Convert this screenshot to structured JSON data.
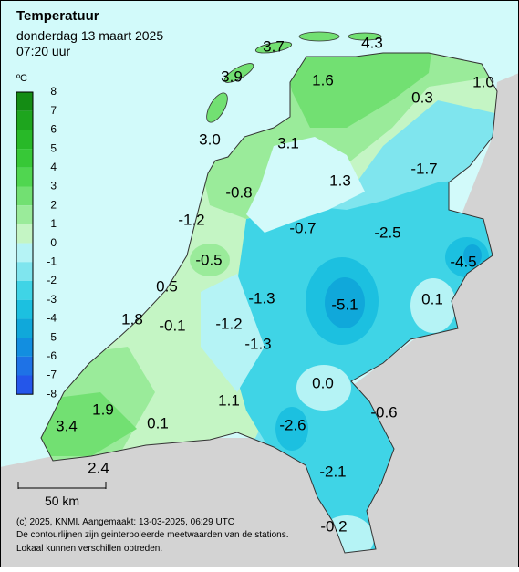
{
  "header": {
    "title": "Temperatuur",
    "date": "donderdag 13 maart 2025",
    "time": "07:20 uur"
  },
  "legend": {
    "unit": "ºC",
    "labels": [
      "8",
      "7",
      "6",
      "5",
      "4",
      "3",
      "2",
      "1",
      "0",
      "-1",
      "-2",
      "-3",
      "-4",
      "-5",
      "-6",
      "-7",
      "-8"
    ],
    "colors": [
      "#148c14",
      "#1ea51e",
      "#28b928",
      "#37c837",
      "#50d650",
      "#72e072",
      "#9aeb9a",
      "#c4f5c4",
      "#b5f3f5",
      "#7fe5ee",
      "#3fd4e6",
      "#1cc0e0",
      "#10a8da",
      "#128ee0",
      "#1e72e6",
      "#2456ea"
    ]
  },
  "stations": [
    "3.7",
    "4.3",
    "3.9",
    "1.6",
    "1.0",
    "0.3",
    "3.0",
    "3.1",
    "-1.7",
    "1.3",
    "-0.8",
    "-1.2",
    "-0.7",
    "-2.5",
    "-4.5",
    "-0.5",
    "0.5",
    "-1.3",
    "-5.1",
    "0.1",
    "1.8",
    "-0.1",
    "-1.2",
    "-1.3",
    "0.0",
    "-0.6",
    "1.1",
    "1.9",
    "3.4",
    "0.1",
    "-2.6",
    "2.4",
    "-2.1",
    "-0.2"
  ],
  "scale": "50 km",
  "footer": [
    "(c) 2025, KNMI. Aangemaakt: 13-03-2025, 06:29 UTC",
    "De contourlijnen zijn geinterpoleerde meetwaarden van de stations.",
    "Lokaal kunnen verschillen optreden."
  ]
}
